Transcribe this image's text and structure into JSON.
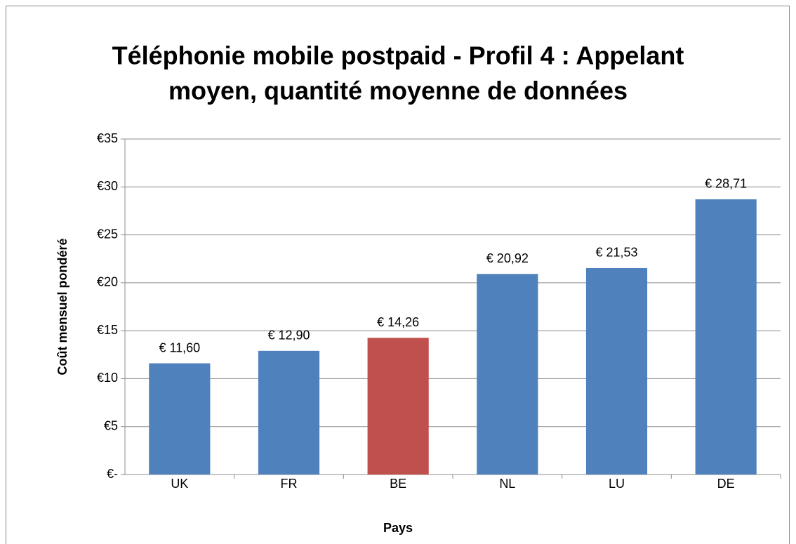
{
  "chart_data": {
    "type": "bar",
    "title": [
      "Téléphonie mobile postpaid - Profil 4 : Appelant",
      "moyen, quantité moyenne de données"
    ],
    "x_label": "Pays",
    "y_label": "Coût mensuel pondéré",
    "categories": [
      "UK",
      "FR",
      "BE",
      "NL",
      "LU",
      "DE"
    ],
    "values": [
      11.6,
      12.9,
      14.26,
      20.92,
      21.53,
      28.71
    ],
    "value_labels": [
      "€ 11,60",
      "€ 12,90",
      "€ 14,26",
      "€ 20,92",
      "€ 21,53",
      "€ 28,71"
    ],
    "colors": [
      "#4f81bd",
      "#4f81bd",
      "#c0504d",
      "#4f81bd",
      "#4f81bd",
      "#4f81bd"
    ],
    "ylim": [
      0,
      35
    ],
    "yticks": [
      {
        "value": 0,
        "label": "€-"
      },
      {
        "value": 5,
        "label": "€5"
      },
      {
        "value": 10,
        "label": "€10"
      },
      {
        "value": 15,
        "label": "€15"
      },
      {
        "value": 20,
        "label": "€20"
      },
      {
        "value": 25,
        "label": "€25"
      },
      {
        "value": 30,
        "label": "€30"
      },
      {
        "value": 35,
        "label": "€35"
      }
    ],
    "grid": true
  }
}
